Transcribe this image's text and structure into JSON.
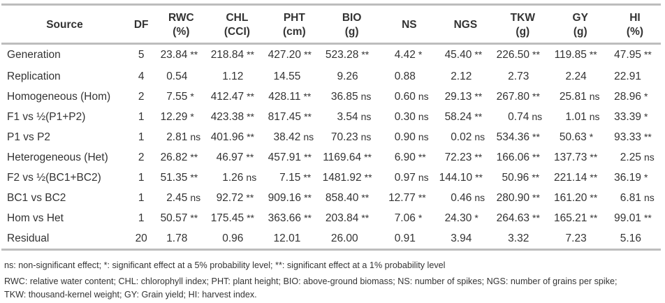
{
  "headers": [
    {
      "l1": "Source",
      "l2": ""
    },
    {
      "l1": "DF",
      "l2": ""
    },
    {
      "l1": "RWC",
      "l2": "(%)"
    },
    {
      "l1": "CHL",
      "l2": "(CCI)"
    },
    {
      "l1": "PHT",
      "l2": "(cm)"
    },
    {
      "l1": "BIO",
      "l2": "(g)"
    },
    {
      "l1": "NS",
      "l2": ""
    },
    {
      "l1": "NGS",
      "l2": ""
    },
    {
      "l1": "TKW",
      "l2": "(g)"
    },
    {
      "l1": "GY",
      "l2": "(g)"
    },
    {
      "l1": "HI",
      "l2": "(%)"
    }
  ],
  "rows": [
    {
      "source": "Generation",
      "df": "5",
      "cells": [
        [
          "23.84",
          "**"
        ],
        [
          "218.84",
          "**"
        ],
        [
          "427.20",
          "**"
        ],
        [
          "523.28",
          "**"
        ],
        [
          "4.42",
          "*"
        ],
        [
          "45.40",
          "**"
        ],
        [
          "226.50",
          "**"
        ],
        [
          "119.85",
          "**"
        ],
        [
          "47.95",
          "**"
        ]
      ]
    },
    {
      "source": "Replication",
      "df": "4",
      "cells": [
        [
          "0.54",
          ""
        ],
        [
          "1.12",
          ""
        ],
        [
          "14.55",
          ""
        ],
        [
          "9.26",
          ""
        ],
        [
          "0.88",
          ""
        ],
        [
          "2.12",
          ""
        ],
        [
          "2.73",
          ""
        ],
        [
          "2.24",
          ""
        ],
        [
          "22.91",
          ""
        ]
      ]
    },
    {
      "source": "Homogeneous (Hom)",
      "df": "2",
      "cells": [
        [
          "7.55",
          "*"
        ],
        [
          "412.47",
          "**"
        ],
        [
          "428.11",
          "**"
        ],
        [
          "36.85",
          "ns"
        ],
        [
          "0.60",
          "ns"
        ],
        [
          "29.13",
          "**"
        ],
        [
          "267.80",
          "**"
        ],
        [
          "25.81",
          "ns"
        ],
        [
          "28.96",
          "*"
        ]
      ]
    },
    {
      "source": "F1 vs ½(P1+P2)",
      "df": "1",
      "cells": [
        [
          "12.29",
          "*"
        ],
        [
          "423.38",
          "**"
        ],
        [
          "817.45",
          "**"
        ],
        [
          "3.54",
          "ns"
        ],
        [
          "0.30",
          "ns"
        ],
        [
          "58.24",
          "**"
        ],
        [
          "0.74",
          "ns"
        ],
        [
          "1.01",
          "ns"
        ],
        [
          "33.39",
          "*"
        ]
      ]
    },
    {
      "source": "P1 vs P2",
      "df": "1",
      "cells": [
        [
          "2.81",
          "ns"
        ],
        [
          "401.96",
          "**"
        ],
        [
          "38.42",
          "ns"
        ],
        [
          "70.23",
          "ns"
        ],
        [
          "0.90",
          "ns"
        ],
        [
          "0.02",
          "ns"
        ],
        [
          "534.36",
          "**"
        ],
        [
          "50.63",
          "*"
        ],
        [
          "93.33",
          "**"
        ]
      ]
    },
    {
      "source": "Heterogeneous (Het)",
      "df": "2",
      "cells": [
        [
          "26.82",
          "**"
        ],
        [
          "46.97",
          "**"
        ],
        [
          "457.91",
          "**"
        ],
        [
          "1169.64",
          "**"
        ],
        [
          "6.90",
          "**"
        ],
        [
          "72.23",
          "**"
        ],
        [
          "166.06",
          "**"
        ],
        [
          "137.73",
          "**"
        ],
        [
          "2.25",
          "ns"
        ]
      ]
    },
    {
      "source": "F2 vs ½(BC1+BC2)",
      "df": "1",
      "cells": [
        [
          "51.35",
          "**"
        ],
        [
          "1.26",
          "ns"
        ],
        [
          "7.15",
          "**"
        ],
        [
          "1481.92",
          "**"
        ],
        [
          "0.97",
          "ns"
        ],
        [
          "144.10",
          "**"
        ],
        [
          "50.96",
          "**"
        ],
        [
          "221.14",
          "**"
        ],
        [
          "36.19",
          "*"
        ]
      ]
    },
    {
      "source": "BC1 vs BC2",
      "df": "1",
      "cells": [
        [
          "2.45",
          "ns"
        ],
        [
          "92.72",
          "**"
        ],
        [
          "909.16",
          "**"
        ],
        [
          "858.40",
          "**"
        ],
        [
          "12.77",
          "**"
        ],
        [
          "0.46",
          "ns"
        ],
        [
          "280.90",
          "**"
        ],
        [
          "161.20",
          "**"
        ],
        [
          "6.81",
          "ns"
        ]
      ]
    },
    {
      "source": "Hom vs Het",
      "df": "1",
      "cells": [
        [
          "50.57",
          "**"
        ],
        [
          "175.45",
          "**"
        ],
        [
          "363.66",
          "**"
        ],
        [
          "203.84",
          "**"
        ],
        [
          "7.06",
          "*"
        ],
        [
          "24.30",
          "*"
        ],
        [
          "264.63",
          "**"
        ],
        [
          "165.21",
          "**"
        ],
        [
          "99.01",
          "**"
        ]
      ]
    },
    {
      "source": "Residual",
      "df": "20",
      "cells": [
        [
          "1.78",
          ""
        ],
        [
          "0.96",
          ""
        ],
        [
          "12.01",
          ""
        ],
        [
          "26.00",
          ""
        ],
        [
          "0.91",
          ""
        ],
        [
          "3.94",
          ""
        ],
        [
          "3.32",
          ""
        ],
        [
          "7.23",
          ""
        ],
        [
          "5.16",
          ""
        ]
      ]
    }
  ],
  "notes": [
    "ns: non-significant effect; *: significant effect at a 5% probability level; **: significant effect at a 1% probability level",
    "RWC: relative water content; CHL: chlorophyll index; PHT: plant height; BIO: above-ground biomass; NS: number of spikes; NGS: number of grains per spike;",
    "TKW: thousand-kernel weight; GY: Grain yield; HI: harvest index."
  ]
}
